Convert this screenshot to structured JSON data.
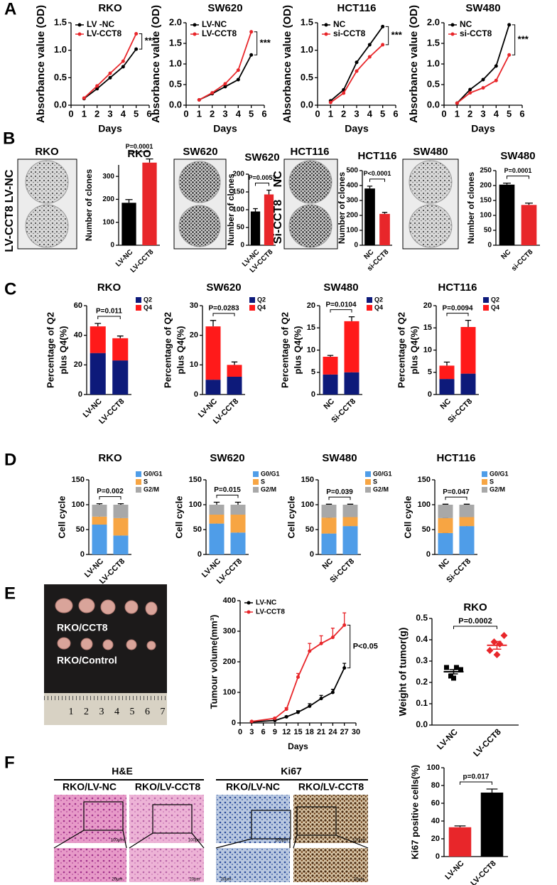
{
  "panel_labels": [
    "A",
    "B",
    "C",
    "D",
    "E",
    "F"
  ],
  "clone_images": [
    {
      "title": "RKO",
      "rows": [
        "LV-NC",
        "LV-CCT8"
      ]
    },
    {
      "title": "SW620"
    },
    {
      "title": "HCT116",
      "rows": [
        "NC",
        "Si-CCT8"
      ]
    },
    {
      "title": "SW480"
    }
  ],
  "tumor_photo": {
    "labels": [
      "RKO/CCT8",
      "RKO/Control"
    ],
    "ruler": [
      1,
      2,
      3,
      4,
      5,
      6,
      7
    ]
  },
  "histology": [
    {
      "stain": "H&E",
      "columns": [
        "RKO/LV-NC",
        "RKO/LV-CCT8"
      ],
      "scale_bars": [
        "100μm",
        "20μm"
      ]
    },
    {
      "stain": "Ki67",
      "columns": [
        "RKO/LV-NC",
        "RKO/LV-CCT8"
      ],
      "scale_bars": [
        "100μm",
        "20μm"
      ]
    }
  ],
  "chart_data": [
    {
      "type": "line",
      "title": "RKO",
      "xlabel": "Days",
      "ylabel": "Absorbance value (OD)",
      "x": [
        1,
        2,
        3,
        4,
        5
      ],
      "xlim": [
        0,
        6
      ],
      "xticks": [
        0,
        1,
        2,
        3,
        4,
        5,
        6
      ],
      "ylim": [
        0,
        1.5
      ],
      "yticks": [
        {
          "value": 0,
          "label": "0.0"
        },
        0.5,
        {
          "value": 1,
          "label": "1.0"
        },
        1.5
      ],
      "legend": "upper left",
      "annotation": "***",
      "series": [
        {
          "name": "LV -NC",
          "color": "#000000",
          "values": [
            0.12,
            0.3,
            0.5,
            0.7,
            1.02
          ]
        },
        {
          "name": "LV-CCT8",
          "color": "#e8262a",
          "values": [
            0.13,
            0.35,
            0.58,
            0.8,
            1.3
          ]
        }
      ]
    },
    {
      "type": "line",
      "title": "SW620",
      "xlabel": "Days",
      "ylabel": "Absorbance value (OD)",
      "x": [
        1,
        2,
        3,
        4,
        5
      ],
      "xlim": [
        0,
        6
      ],
      "xticks": [
        0,
        1,
        2,
        3,
        4,
        5,
        6
      ],
      "ylim": [
        0,
        2
      ],
      "yticks": [
        {
          "value": 0,
          "label": "0.0"
        },
        0.5,
        {
          "value": 1,
          "label": "1.0"
        },
        1.5,
        {
          "value": 2,
          "label": "2.0"
        }
      ],
      "legend": "upper left",
      "annotation": "***",
      "series": [
        {
          "name": "LV-NC",
          "color": "#000000",
          "values": [
            0.13,
            0.28,
            0.45,
            0.62,
            1.22
          ]
        },
        {
          "name": "LV-CCT8",
          "color": "#e8262a",
          "values": [
            0.13,
            0.3,
            0.52,
            0.85,
            1.78
          ]
        }
      ]
    },
    {
      "type": "line",
      "title": "HCT116",
      "xlabel": "Days",
      "ylabel": "Absorbance value (OD)",
      "x": [
        1,
        2,
        3,
        4,
        5
      ],
      "xlim": [
        0,
        6
      ],
      "xticks": [
        0,
        1,
        2,
        3,
        4,
        5,
        6
      ],
      "ylim": [
        0,
        1.5
      ],
      "yticks": [
        {
          "value": 0,
          "label": "0.0"
        },
        0.5,
        {
          "value": 1,
          "label": "1.0"
        },
        1.5
      ],
      "legend": "upper left",
      "annotation": "***",
      "series": [
        {
          "name": "NC",
          "color": "#000000",
          "values": [
            0.08,
            0.28,
            0.78,
            1.1,
            1.43
          ]
        },
        {
          "name": "si-CCT8",
          "color": "#e8262a",
          "values": [
            0.05,
            0.22,
            0.62,
            0.88,
            1.1
          ]
        }
      ]
    },
    {
      "type": "line",
      "title": "SW480",
      "xlabel": "Days",
      "ylabel": "Absorbance value (OD)",
      "x": [
        1,
        2,
        3,
        4,
        5
      ],
      "xlim": [
        0,
        6
      ],
      "xticks": [
        0,
        1,
        2,
        3,
        4,
        5,
        6
      ],
      "ylim": [
        0,
        2
      ],
      "yticks": [
        {
          "value": 0,
          "label": "0.0"
        },
        0.5,
        {
          "value": 1,
          "label": "1.0"
        },
        1.5,
        {
          "value": 2,
          "label": "2.0"
        }
      ],
      "legend": "upper left",
      "annotation": "***",
      "series": [
        {
          "name": "NC",
          "color": "#000000",
          "values": [
            0.05,
            0.38,
            0.62,
            0.95,
            1.95
          ]
        },
        {
          "name": "si-CCT8",
          "color": "#e8262a",
          "values": [
            0.05,
            0.3,
            0.42,
            0.6,
            1.22
          ]
        }
      ]
    },
    {
      "type": "bar",
      "title": "RKO",
      "ylabel": "Number of clones",
      "categories": [
        "LV-NC",
        "LV-CCT8"
      ],
      "values": [
        185,
        360
      ],
      "errors": [
        14,
        16
      ],
      "colors": [
        "#000000",
        "#e8262a"
      ],
      "ylim": [
        0,
        350
      ],
      "yticks": [
        0,
        100,
        200,
        300
      ],
      "annotation": "P=0.0001"
    },
    {
      "type": "bar",
      "title": "SW620",
      "ylabel": "Number of clones",
      "categories": [
        "LV-NC",
        "LV-CCT8"
      ],
      "values": [
        95,
        143
      ],
      "errors": [
        8,
        12
      ],
      "colors": [
        "#000000",
        "#e8262a"
      ],
      "ylim": [
        0,
        200
      ],
      "yticks": [
        0,
        50,
        100,
        150,
        200
      ],
      "annotation": "P=0.0053"
    },
    {
      "type": "bar",
      "title": "HCT116",
      "ylabel": "Number of clones",
      "categories": [
        "NC",
        "si-CCT8"
      ],
      "values": [
        380,
        210
      ],
      "errors": [
        16,
        10
      ],
      "colors": [
        "#000000",
        "#e8262a"
      ],
      "ylim": [
        0,
        500
      ],
      "yticks": [
        0,
        100,
        200,
        300,
        400,
        500
      ],
      "annotation": "P<0.0001"
    },
    {
      "type": "bar",
      "title": "SW480",
      "ylabel": "Number of clones",
      "categories": [
        "NC",
        "si-CCT8"
      ],
      "values": [
        203,
        135
      ],
      "errors": [
        5,
        6
      ],
      "colors": [
        "#000000",
        "#e8262a"
      ],
      "ylim": [
        0,
        250
      ],
      "yticks": [
        0,
        50,
        100,
        150,
        200,
        250
      ],
      "annotation": "P=0.0001"
    },
    {
      "type": "stacked",
      "title": "RKO",
      "ylabel": [
        "Percentage of Q2",
        "plus Q4(%)"
      ],
      "categories": [
        "LV-NC",
        "LV-CCT8"
      ],
      "ylim": [
        0,
        60
      ],
      "yticks": [
        0,
        20,
        40,
        60
      ],
      "legend": "right",
      "annotation": "P=0.011",
      "series": [
        {
          "name": "Q2",
          "color": "#0d1a7a",
          "values": [
            28,
            23
          ],
          "errors": [
            2.5,
            2
          ]
        },
        {
          "name": "Q4",
          "color": "#ff1a1a",
          "values": [
            18,
            15
          ],
          "errors": [
            2,
            1.5
          ]
        }
      ]
    },
    {
      "type": "stacked",
      "title": "SW620",
      "ylabel": [
        "Percentage of Q2",
        "plus Q4(%)"
      ],
      "categories": [
        "LV-NC",
        "LV-CCT8"
      ],
      "ylim": [
        0,
        30
      ],
      "yticks": [
        0,
        10,
        20,
        30
      ],
      "legend": "right",
      "annotation": "P=0.0283",
      "series": [
        {
          "name": "Q2",
          "color": "#0d1a7a",
          "values": [
            5,
            6
          ],
          "errors": [
            0.3,
            1
          ]
        },
        {
          "name": "Q4",
          "color": "#ff1a1a",
          "values": [
            18,
            4
          ],
          "errors": [
            2,
            1
          ]
        }
      ]
    },
    {
      "type": "stacked",
      "title": "SW480",
      "ylabel": [
        "Percentage of Q2",
        "plus Q4(%)"
      ],
      "categories": [
        "NC",
        "Si-CCT8"
      ],
      "ylim": [
        0,
        20
      ],
      "yticks": [
        0,
        5,
        10,
        15,
        20
      ],
      "legend": "right",
      "annotation": "P=0.0104",
      "series": [
        {
          "name": "Q2",
          "color": "#0d1a7a",
          "values": [
            4.5,
            5
          ],
          "errors": [
            0.5,
            0.6
          ]
        },
        {
          "name": "Q4",
          "color": "#ff1a1a",
          "values": [
            4,
            11.5
          ],
          "errors": [
            0.3,
            1
          ]
        }
      ]
    },
    {
      "type": "stacked",
      "title": "HCT116",
      "ylabel": [
        "Percentage of Q2",
        "plus Q4(%)"
      ],
      "categories": [
        "NC",
        "Si-CCT8"
      ],
      "ylim": [
        0,
        20
      ],
      "yticks": [
        0,
        5,
        10,
        15,
        20
      ],
      "legend": "right",
      "annotation": "P=0.0094",
      "series": [
        {
          "name": "Q2",
          "color": "#0d1a7a",
          "values": [
            3.5,
            4.7
          ],
          "errors": [
            1,
            1
          ]
        },
        {
          "name": "Q4",
          "color": "#ff1a1a",
          "values": [
            3,
            10.5
          ],
          "errors": [
            0.8,
            1.5
          ]
        }
      ]
    },
    {
      "type": "stacked",
      "title": "RKO",
      "ylabel": "Cell cycle",
      "categories": [
        "LV-NC",
        "LV-CCT8"
      ],
      "ylim": [
        0,
        150
      ],
      "yticks": [
        0,
        50,
        100,
        150
      ],
      "legend": "right",
      "annotation": "P=0.002",
      "series": [
        {
          "name": "G0/G1",
          "color": "#4f9de8",
          "values": [
            60,
            38
          ],
          "errors": [
            2,
            2
          ]
        },
        {
          "name": "S",
          "color": "#f7a543",
          "values": [
            16,
            35
          ],
          "errors": [
            2,
            2
          ]
        },
        {
          "name": "G2/M",
          "color": "#a8a8a8",
          "values": [
            24,
            27
          ],
          "errors": [
            2,
            2
          ]
        }
      ]
    },
    {
      "type": "stacked",
      "title": "SW620",
      "ylabel": "Cell cycle",
      "categories": [
        "LV-NC",
        "LV-CCT8"
      ],
      "ylim": [
        0,
        150
      ],
      "yticks": [
        0,
        50,
        100,
        150
      ],
      "legend": "right",
      "annotation": "P=0.015",
      "series": [
        {
          "name": "G0/G1",
          "color": "#4f9de8",
          "values": [
            62,
            44
          ],
          "errors": [
            4,
            5
          ]
        },
        {
          "name": "S",
          "color": "#f7a543",
          "values": [
            18,
            36
          ],
          "errors": [
            2,
            2
          ]
        },
        {
          "name": "G2/M",
          "color": "#a8a8a8",
          "values": [
            20,
            20
          ],
          "errors": [
            5,
            5
          ]
        }
      ]
    },
    {
      "type": "stacked",
      "title": "SW480",
      "ylabel": "Cell cycle",
      "categories": [
        "NC",
        "Si-CCT8"
      ],
      "ylim": [
        0,
        150
      ],
      "yticks": [
        0,
        50,
        100,
        150
      ],
      "legend": "right",
      "annotation": "P=0.039",
      "series": [
        {
          "name": "G0/G1",
          "color": "#4f9de8",
          "values": [
            42,
            57
          ],
          "errors": [
            1,
            1
          ]
        },
        {
          "name": "S",
          "color": "#f7a543",
          "values": [
            32,
            18
          ],
          "errors": [
            1,
            1
          ]
        },
        {
          "name": "G2/M",
          "color": "#a8a8a8",
          "values": [
            26,
            25
          ],
          "errors": [
            1,
            1
          ]
        }
      ]
    },
    {
      "type": "stacked",
      "title": "HCT116",
      "ylabel": "Cell cycle",
      "categories": [
        "NC",
        "Si-CCT8"
      ],
      "ylim": [
        0,
        150
      ],
      "yticks": [
        0,
        50,
        100,
        150
      ],
      "legend": "right",
      "annotation": "P=0.047",
      "series": [
        {
          "name": "G0/G1",
          "color": "#4f9de8",
          "values": [
            43,
            57
          ],
          "errors": [
            1,
            1
          ]
        },
        {
          "name": "S",
          "color": "#f7a543",
          "values": [
            30,
            18
          ],
          "errors": [
            1,
            1
          ]
        },
        {
          "name": "G2/M",
          "color": "#a8a8a8",
          "values": [
            27,
            25
          ],
          "errors": [
            1,
            1
          ]
        }
      ]
    },
    {
      "type": "line",
      "xlabel": "Days",
      "ylabel": "Tumour volume(mm³)",
      "x": [
        3,
        9,
        12,
        15,
        18,
        21,
        24,
        27
      ],
      "xlim": [
        0,
        30
      ],
      "xticks": [
        0,
        3,
        6,
        9,
        12,
        15,
        18,
        21,
        24,
        27,
        30
      ],
      "ylim": [
        0,
        400
      ],
      "yticks": [
        0,
        100,
        200,
        300,
        400
      ],
      "legend": "upper left",
      "annotation": "P<0.05",
      "series": [
        {
          "name": "LV-NC",
          "color": "#000000",
          "values": [
            3,
            8,
            20,
            35,
            55,
            80,
            100,
            180
          ],
          "errors": [
            1,
            2,
            3,
            5,
            8,
            10,
            10,
            15
          ]
        },
        {
          "name": "LV-CCT8",
          "color": "#e8262a",
          "values": [
            5,
            15,
            45,
            150,
            235,
            260,
            280,
            320
          ],
          "errors": [
            1,
            3,
            5,
            12,
            25,
            25,
            30,
            40
          ]
        }
      ]
    },
    {
      "type": "dot",
      "title": "RKO",
      "ylabel": "Weight of tumor(g)",
      "categories": [
        "LV-NC",
        "LV-CCT8"
      ],
      "points": [
        [
          0.27,
          0.26,
          0.23,
          0.27,
          0.22
        ],
        [
          0.35,
          0.42,
          0.39,
          0.38,
          0.33
        ]
      ],
      "means": [
        0.25,
        0.374
      ],
      "errors": [
        0.01,
        0.018
      ],
      "colors": [
        "#000000",
        "#e8262a"
      ],
      "ylim": [
        0,
        0.5
      ],
      "yticks": [
        {
          "value": 0,
          "label": "0.0"
        },
        0.1,
        0.2,
        0.3,
        0.4,
        0.5
      ],
      "annotation": "P=0.0002"
    },
    {
      "type": "bar",
      "ylabel": "Ki67 positive cells(%)",
      "categories": [
        "LV-NC",
        "LV-CCT8"
      ],
      "values": [
        33,
        72
      ],
      "errors": [
        1.5,
        4
      ],
      "colors": [
        "#e8262a",
        "#000000"
      ],
      "ylim": [
        0,
        100
      ],
      "yticks": [
        0,
        20,
        40,
        60,
        80,
        100
      ],
      "annotation": "p=0.017"
    }
  ]
}
